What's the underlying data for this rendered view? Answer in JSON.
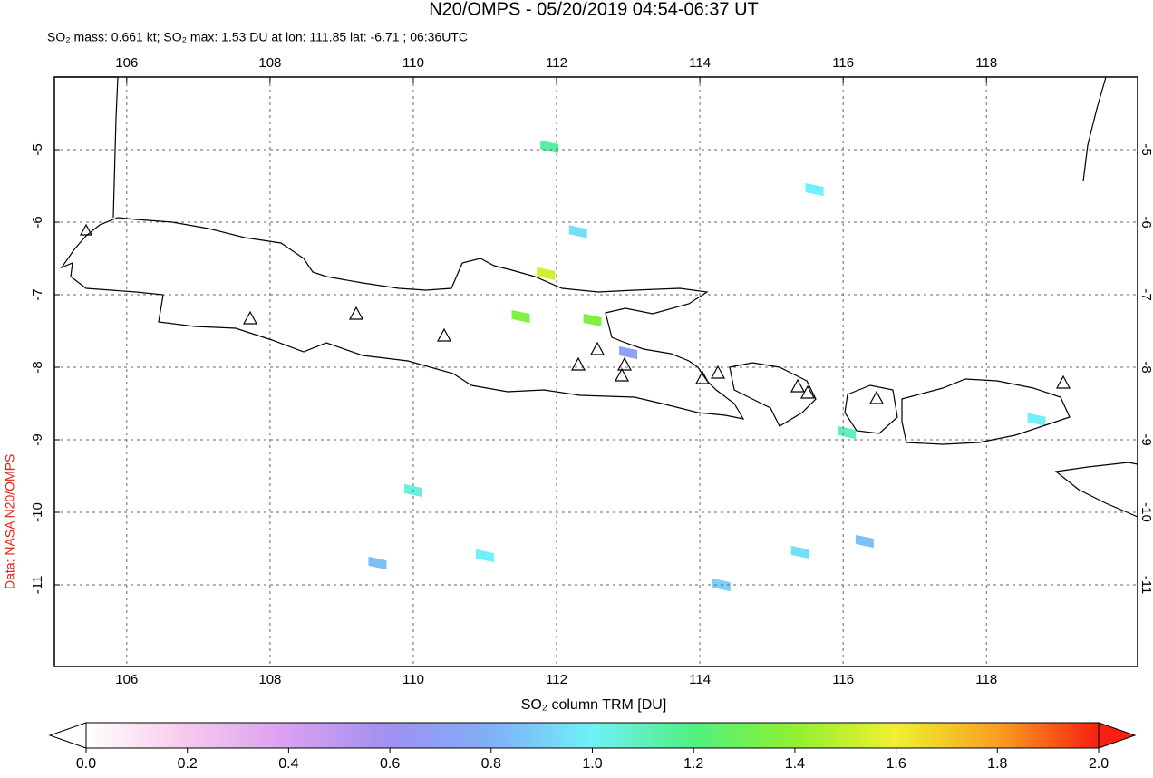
{
  "chart_data": {
    "type": "map",
    "title": "N20/OMPS - 05/20/2019 04:54-06:37 UT",
    "subtitle": "SO₂ mass: 0.661 kt; SO₂ max: 1.53 DU at lon: 111.85 lat: -6.71 ; 06:36UTC",
    "credit": "Data: NASA N20/OMPS",
    "xlim": [
      104.99,
      120.11
    ],
    "ylim": [
      -12.125,
      -4
    ],
    "xticks": [
      106,
      108,
      110,
      112,
      114,
      116,
      118
    ],
    "yticks": [
      -5,
      -6,
      -7,
      -8,
      -9,
      -10,
      -11
    ],
    "grid": true,
    "cells": {
      "lon": [
        111.85,
        112.5,
        111.5,
        111.9,
        115.6,
        111.0,
        116.05,
        118.7,
        112.3,
        113.0,
        114.3,
        115.4,
        110.0,
        116.3,
        109.5
      ],
      "lat": [
        -6.71,
        -7.35,
        -7.3,
        -4.96,
        -5.55,
        -10.6,
        -8.9,
        -8.72,
        -6.13,
        -7.8,
        -11.0,
        -10.55,
        -9.7,
        -10.4,
        -10.7
      ],
      "values": [
        1.53,
        1.35,
        1.35,
        1.15,
        1.0,
        1.0,
        1.1,
        1.0,
        0.95,
        0.7,
        0.9,
        0.95,
        1.05,
        0.85,
        0.85
      ]
    },
    "colorbar": {
      "label": "SO₂ column TRM [DU]",
      "lim": [
        0,
        2
      ],
      "ticks": [
        {
          "value": 0,
          "label": "0.0"
        },
        {
          "value": 0.2,
          "label": "0.2"
        },
        {
          "value": 0.4,
          "label": "0.4"
        },
        {
          "value": 0.6,
          "label": "0.6"
        },
        {
          "value": 0.8,
          "label": "0.8"
        },
        {
          "value": 1,
          "label": "1.0"
        },
        {
          "value": 1.2,
          "label": "1.2"
        },
        {
          "value": 1.4,
          "label": "1.4"
        },
        {
          "value": 1.6,
          "label": "1.6"
        },
        {
          "value": 1.8,
          "label": "1.8"
        },
        {
          "value": 2,
          "label": "2.0"
        }
      ],
      "colors": [
        "#ffffff",
        "#f8c8ec",
        "#d8a0f0",
        "#a090f0",
        "#80b0f8",
        "#70f0f8",
        "#50f080",
        "#90f030",
        "#f0f030",
        "#f8a020",
        "#f82010"
      ]
    }
  }
}
